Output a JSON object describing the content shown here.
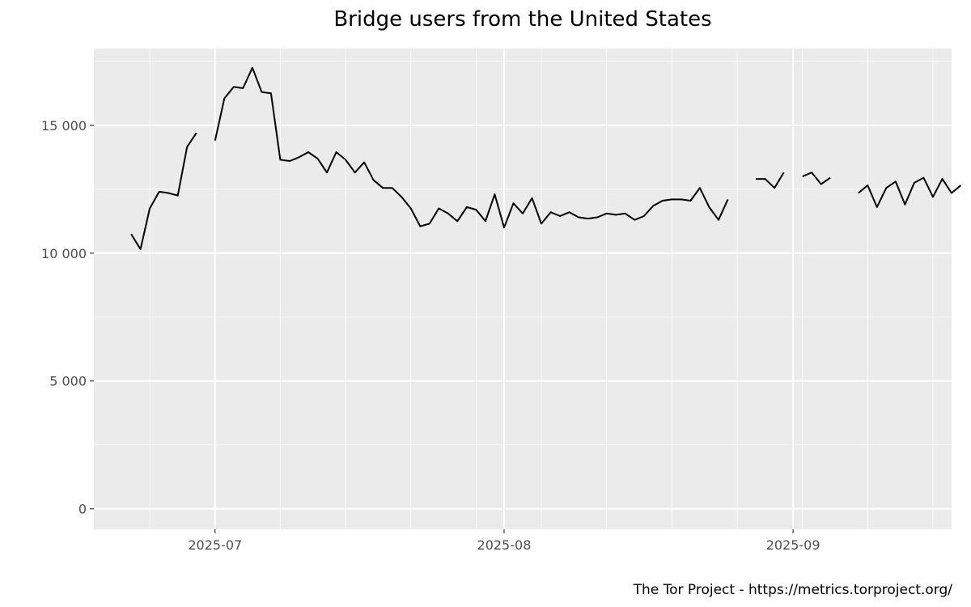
{
  "chart_data": {
    "type": "line",
    "title": "Bridge users from the United States",
    "caption": "The Tor Project - https://metrics.torproject.org/",
    "xlabel": "",
    "ylabel": "",
    "x_range": [
      "2025-06-18",
      "2025-09-18"
    ],
    "ylim": [
      -800,
      18000
    ],
    "y_ticks": [
      {
        "value": 0,
        "label": "0"
      },
      {
        "value": 5000,
        "label": "5 000"
      },
      {
        "value": 10000,
        "label": "10 000"
      },
      {
        "value": 15000,
        "label": "15 000"
      }
    ],
    "x_ticks": [
      {
        "date": "2025-07-01",
        "label": "2025-07"
      },
      {
        "date": "2025-08-01",
        "label": "2025-08"
      },
      {
        "date": "2025-09-01",
        "label": "2025-09"
      }
    ],
    "grid": true,
    "background_color": "#ebebeb",
    "line_color": "#000000",
    "series": [
      {
        "points": [
          [
            "2025-06-22",
            10750
          ],
          [
            "2025-06-23",
            10150
          ],
          [
            "2025-06-24",
            11750
          ],
          [
            "2025-06-25",
            12400
          ],
          [
            "2025-06-26",
            12350
          ],
          [
            "2025-06-27",
            12250
          ],
          [
            "2025-06-28",
            14150
          ],
          [
            "2025-06-29",
            14700
          ],
          [
            "2025-06-30",
            null
          ],
          [
            "2025-07-01",
            14400
          ],
          [
            "2025-07-02",
            16050
          ],
          [
            "2025-07-03",
            16500
          ],
          [
            "2025-07-04",
            16450
          ],
          [
            "2025-07-05",
            17250
          ],
          [
            "2025-07-06",
            16300
          ],
          [
            "2025-07-07",
            16250
          ],
          [
            "2025-07-08",
            13650
          ],
          [
            "2025-07-09",
            13600
          ],
          [
            "2025-07-10",
            13750
          ],
          [
            "2025-07-11",
            13950
          ],
          [
            "2025-07-12",
            13700
          ],
          [
            "2025-07-13",
            13150
          ],
          [
            "2025-07-14",
            13950
          ],
          [
            "2025-07-15",
            13650
          ],
          [
            "2025-07-16",
            13150
          ],
          [
            "2025-07-17",
            13550
          ],
          [
            "2025-07-18",
            12850
          ],
          [
            "2025-07-19",
            12550
          ],
          [
            "2025-07-20",
            12550
          ],
          [
            "2025-07-21",
            12200
          ],
          [
            "2025-07-22",
            11750
          ],
          [
            "2025-07-23",
            11050
          ],
          [
            "2025-07-24",
            11150
          ],
          [
            "2025-07-25",
            11750
          ],
          [
            "2025-07-26",
            11550
          ],
          [
            "2025-07-27",
            11250
          ],
          [
            "2025-07-28",
            11800
          ],
          [
            "2025-07-29",
            11700
          ],
          [
            "2025-07-30",
            11250
          ],
          [
            "2025-07-31",
            12300
          ],
          [
            "2025-08-01",
            11000
          ],
          [
            "2025-08-02",
            11950
          ],
          [
            "2025-08-03",
            11550
          ],
          [
            "2025-08-04",
            12150
          ],
          [
            "2025-08-05",
            11150
          ],
          [
            "2025-08-06",
            11600
          ],
          [
            "2025-08-07",
            11450
          ],
          [
            "2025-08-08",
            11600
          ],
          [
            "2025-08-09",
            11400
          ],
          [
            "2025-08-10",
            11350
          ],
          [
            "2025-08-11",
            11400
          ],
          [
            "2025-08-12",
            11550
          ],
          [
            "2025-08-13",
            11500
          ],
          [
            "2025-08-14",
            11550
          ],
          [
            "2025-08-15",
            11300
          ],
          [
            "2025-08-16",
            11450
          ],
          [
            "2025-08-17",
            11850
          ],
          [
            "2025-08-18",
            12050
          ],
          [
            "2025-08-19",
            12100
          ],
          [
            "2025-08-20",
            12100
          ],
          [
            "2025-08-21",
            12050
          ],
          [
            "2025-08-22",
            12550
          ],
          [
            "2025-08-23",
            11800
          ],
          [
            "2025-08-24",
            11300
          ],
          [
            "2025-08-25",
            12100
          ],
          [
            "2025-08-26",
            null
          ],
          [
            "2025-08-27",
            null
          ],
          [
            "2025-08-28",
            12900
          ],
          [
            "2025-08-29",
            12900
          ],
          [
            "2025-08-30",
            12550
          ],
          [
            "2025-08-31",
            13150
          ],
          [
            "2025-09-01",
            null
          ],
          [
            "2025-09-02",
            13000
          ],
          [
            "2025-09-03",
            13150
          ],
          [
            "2025-09-04",
            12700
          ],
          [
            "2025-09-05",
            12950
          ],
          [
            "2025-09-06",
            null
          ],
          [
            "2025-09-07",
            null
          ],
          [
            "2025-09-08",
            12350
          ],
          [
            "2025-09-09",
            12650
          ],
          [
            "2025-09-10",
            11800
          ],
          [
            "2025-09-11",
            12550
          ],
          [
            "2025-09-12",
            12800
          ],
          [
            "2025-09-13",
            11900
          ],
          [
            "2025-09-14",
            12750
          ],
          [
            "2025-09-15",
            12950
          ],
          [
            "2025-09-16",
            12200
          ],
          [
            "2025-09-17",
            12900
          ],
          [
            "2025-09-18",
            12350
          ],
          [
            "2025-09-19",
            12650
          ]
        ]
      }
    ]
  }
}
